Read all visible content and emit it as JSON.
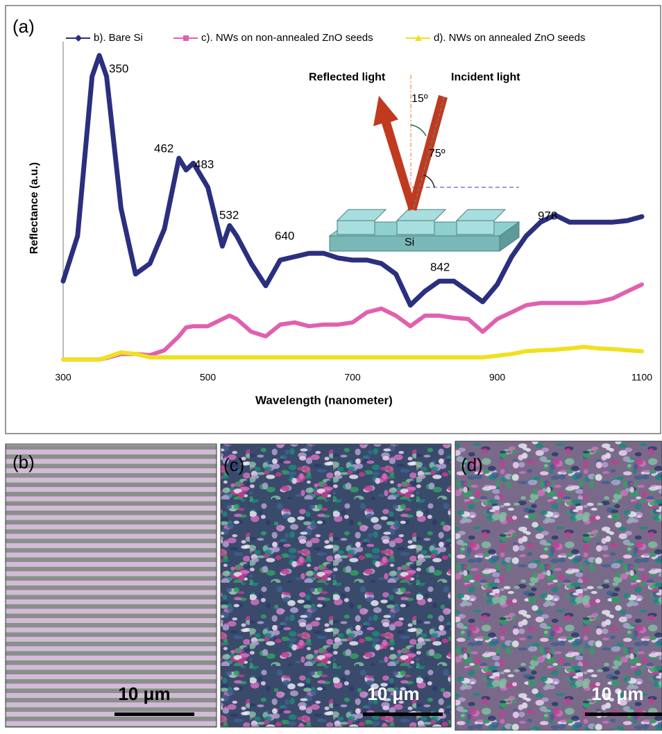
{
  "chart_data": {
    "type": "line",
    "panel_label": "(a)",
    "x_label": "Wavelength (nanometer)",
    "y_label": "Reflectance (a.u.)",
    "x": [
      300,
      320,
      340,
      350,
      360,
      380,
      400,
      420,
      440,
      460,
      470,
      480,
      500,
      520,
      530,
      540,
      560,
      580,
      600,
      620,
      640,
      660,
      680,
      700,
      720,
      740,
      760,
      780,
      800,
      820,
      840,
      860,
      880,
      900,
      920,
      940,
      960,
      980,
      1000,
      1020,
      1040,
      1060,
      1080,
      1100
    ],
    "xlim": [
      300,
      1100
    ],
    "xticks": [
      300,
      500,
      700,
      900,
      1100
    ],
    "ylim": [
      0,
      100
    ],
    "legend": "top",
    "series": [
      {
        "name": "b). Bare Si",
        "color": "#2b2f7f",
        "marker": "diamond",
        "values": [
          25.8,
          40.4,
          92.1,
          98.9,
          92.1,
          49.4,
          28.1,
          31.5,
          42.7,
          65.6,
          61.8,
          64.0,
          56.2,
          37.1,
          43.8,
          40.4,
          31.5,
          24.3,
          32.6,
          33.7,
          34.8,
          34.8,
          33.3,
          32.6,
          32.6,
          31.5,
          28.1,
          18.0,
          22.5,
          25.8,
          25.8,
          22.5,
          19.1,
          24.7,
          33.7,
          40.4,
          44.9,
          47.2,
          44.9,
          44.9,
          44.9,
          44.9,
          45.4,
          46.7
        ]
      },
      {
        "name": "c). NWs on non-annealed ZnO seeds",
        "color": "#e060b0",
        "marker": "square",
        "values": [
          0.4,
          0.4,
          0.4,
          0.4,
          0.9,
          2.2,
          2.2,
          1.8,
          3.4,
          7.9,
          10.8,
          11.2,
          11.2,
          13.5,
          14.6,
          13.5,
          9.4,
          7.9,
          11.7,
          12.4,
          11.2,
          11.7,
          11.7,
          12.4,
          15.7,
          16.9,
          14.6,
          11.2,
          14.6,
          14.6,
          13.9,
          13.5,
          9.4,
          13.5,
          15.7,
          18.0,
          18.7,
          18.7,
          18.7,
          18.7,
          19.1,
          20.2,
          22.5,
          24.7
        ]
      },
      {
        "name": "d). NWs on annealed ZnO seeds",
        "color": "#f0e020",
        "marker": "triangle",
        "values": [
          0.4,
          0.4,
          0.4,
          0.4,
          1.1,
          2.7,
          2.2,
          1.1,
          1.1,
          1.1,
          1.1,
          1.1,
          1.1,
          1.1,
          1.1,
          1.1,
          1.1,
          1.1,
          1.1,
          1.1,
          1.1,
          1.1,
          1.1,
          1.1,
          1.1,
          1.1,
          1.1,
          1.1,
          1.1,
          1.1,
          1.1,
          1.1,
          1.1,
          1.6,
          2.2,
          3.1,
          3.4,
          3.6,
          4.0,
          4.5,
          4.0,
          3.8,
          3.4,
          3.1
        ]
      }
    ],
    "annotations": [
      "350",
      "462",
      "483",
      "532",
      "640",
      "842",
      "978"
    ],
    "inset": {
      "reflected": "Reflected light",
      "incident": "Incident light",
      "angle_small": "15º",
      "angle_large": "75º",
      "substrate": "Si"
    }
  },
  "micrographs": [
    {
      "label": "(b)",
      "scale_bar": "10 μm"
    },
    {
      "label": "(c)",
      "scale_bar": "10 μm"
    },
    {
      "label": "(d)",
      "scale_bar": "10 μm"
    }
  ]
}
